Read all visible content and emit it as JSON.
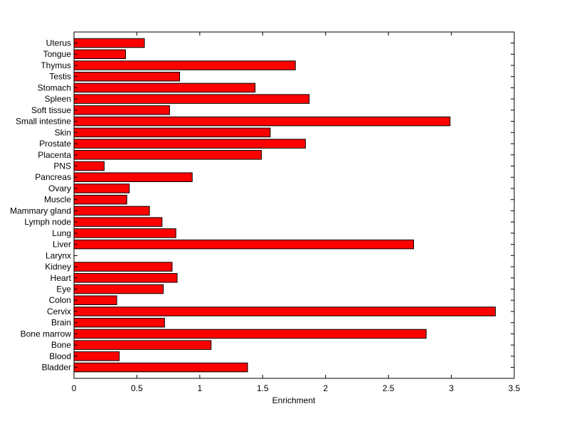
{
  "chart_data": {
    "type": "bar",
    "orientation": "horizontal",
    "xlabel": "Enrichment",
    "ylabel": "",
    "title": "",
    "xlim": [
      0,
      3.5
    ],
    "xticks": [
      "0",
      "0.5",
      "1",
      "1.5",
      "2",
      "2.5",
      "3",
      "3.5"
    ],
    "grid": false,
    "bar_color": "#ff0000",
    "categories": [
      "Uterus",
      "Tongue",
      "Thymus",
      "Testis",
      "Stomach",
      "Spleen",
      "Soft tissue",
      "Small intestine",
      "Skin",
      "Prostate",
      "Placenta",
      "PNS",
      "Pancreas",
      "Ovary",
      "Muscle",
      "Mammary gland",
      "Lymph node",
      "Lung",
      "Liver",
      "Larynx",
      "Kidney",
      "Heart",
      "Eye",
      "Colon",
      "Cervix",
      "Brain",
      "Bone marrow",
      "Bone",
      "Blood",
      "Bladder"
    ],
    "values": [
      0.56,
      0.41,
      1.76,
      0.84,
      1.44,
      1.87,
      0.76,
      2.99,
      1.56,
      1.84,
      1.49,
      0.24,
      0.94,
      0.44,
      0.42,
      0.6,
      0.7,
      0.81,
      2.7,
      0.0,
      0.78,
      0.82,
      0.71,
      0.34,
      3.35,
      0.72,
      2.8,
      1.09,
      0.36,
      1.38
    ]
  }
}
